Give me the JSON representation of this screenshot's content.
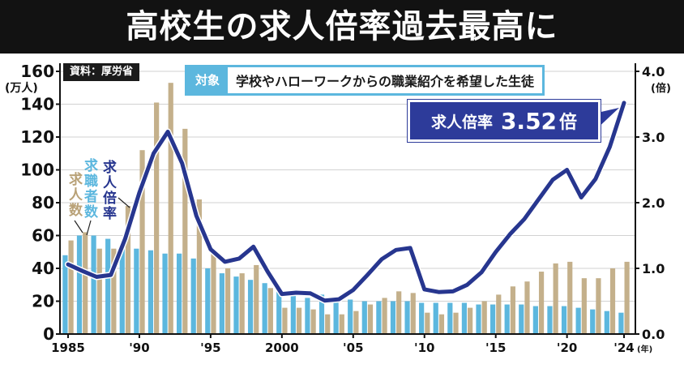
{
  "header": {
    "title": "高校生の求人倍率過去最高に"
  },
  "source": {
    "label": "資料：厚労省"
  },
  "target": {
    "tag": "対象",
    "text": "学校やハローワークからの職業紹介を希望した生徒"
  },
  "callout": {
    "label": "求人倍率",
    "value": "3.52",
    "unit": "倍"
  },
  "axis_units": {
    "left": "(万人)",
    "right": "(倍)",
    "x": "(年)"
  },
  "series_labels": {
    "jobs": "求人数",
    "seekers": "求職者数",
    "ratio": "求人倍率"
  },
  "colors": {
    "jobs": "#c4b08b",
    "seekers": "#5cb7de",
    "ratio": "#27368f",
    "header_bg": "#121212",
    "callout_bg": "#2d3b9a"
  },
  "chart_data": {
    "type": "bar",
    "years": [
      1985,
      1986,
      1987,
      1988,
      1989,
      1990,
      1991,
      1992,
      1993,
      1994,
      1995,
      1996,
      1997,
      1998,
      1999,
      2000,
      2001,
      2002,
      2003,
      2004,
      2005,
      2006,
      2007,
      2008,
      2009,
      2010,
      2011,
      2012,
      2013,
      2014,
      2015,
      2016,
      2017,
      2018,
      2019,
      2020,
      2021,
      2022,
      2023,
      2024
    ],
    "x_tick_labels": [
      {
        "year": 1985,
        "label": "1985"
      },
      {
        "year": 1990,
        "label": "'90"
      },
      {
        "year": 1995,
        "label": "'95"
      },
      {
        "year": 2000,
        "label": "2000"
      },
      {
        "year": 2005,
        "label": "'05"
      },
      {
        "year": 2010,
        "label": "'10"
      },
      {
        "year": 2015,
        "label": "'15"
      },
      {
        "year": 2020,
        "label": "'20"
      },
      {
        "year": 2024,
        "label": "'24"
      }
    ],
    "y_left": {
      "min": 0,
      "max": 160,
      "ticks": [
        "0",
        "20",
        "40",
        "60",
        "80",
        "100",
        "120",
        "140",
        "160"
      ]
    },
    "y_right": {
      "min": 0,
      "max": 4,
      "ticks": [
        "0.0",
        "1.0",
        "2.0",
        "3.0",
        "4.0"
      ]
    },
    "series": [
      {
        "name": "求人数",
        "axis": "left",
        "values": [
          57,
          62,
          52,
          52,
          78,
          112,
          141,
          153,
          125,
          82,
          51,
          40,
          37,
          42,
          28,
          16,
          16,
          15,
          12,
          12,
          14,
          18,
          22,
          26,
          25,
          13,
          12,
          13,
          16,
          20,
          24,
          29,
          32,
          38,
          43,
          44,
          34,
          34,
          40,
          44
        ]
      },
      {
        "name": "求職者数",
        "axis": "left",
        "values": [
          48,
          60,
          60,
          58,
          53,
          52,
          51,
          49,
          49,
          46,
          40,
          37,
          35,
          33,
          31,
          28,
          24,
          22,
          24,
          22,
          21,
          20,
          20,
          20,
          20,
          19,
          19,
          19,
          19,
          18,
          18,
          18,
          18,
          17,
          17,
          17,
          16,
          15,
          14,
          13
        ]
      },
      {
        "name": "求人倍率",
        "axis": "right",
        "values": [
          1.06,
          0.96,
          0.87,
          0.9,
          1.45,
          2.15,
          2.75,
          3.08,
          2.6,
          1.8,
          1.29,
          1.1,
          1.15,
          1.33,
          0.95,
          0.61,
          0.63,
          0.62,
          0.51,
          0.53,
          0.67,
          0.9,
          1.14,
          1.28,
          1.31,
          0.68,
          0.64,
          0.65,
          0.75,
          0.94,
          1.25,
          1.52,
          1.75,
          2.05,
          2.35,
          2.5,
          2.08,
          2.36,
          2.85,
          3.52
        ]
      }
    ]
  }
}
